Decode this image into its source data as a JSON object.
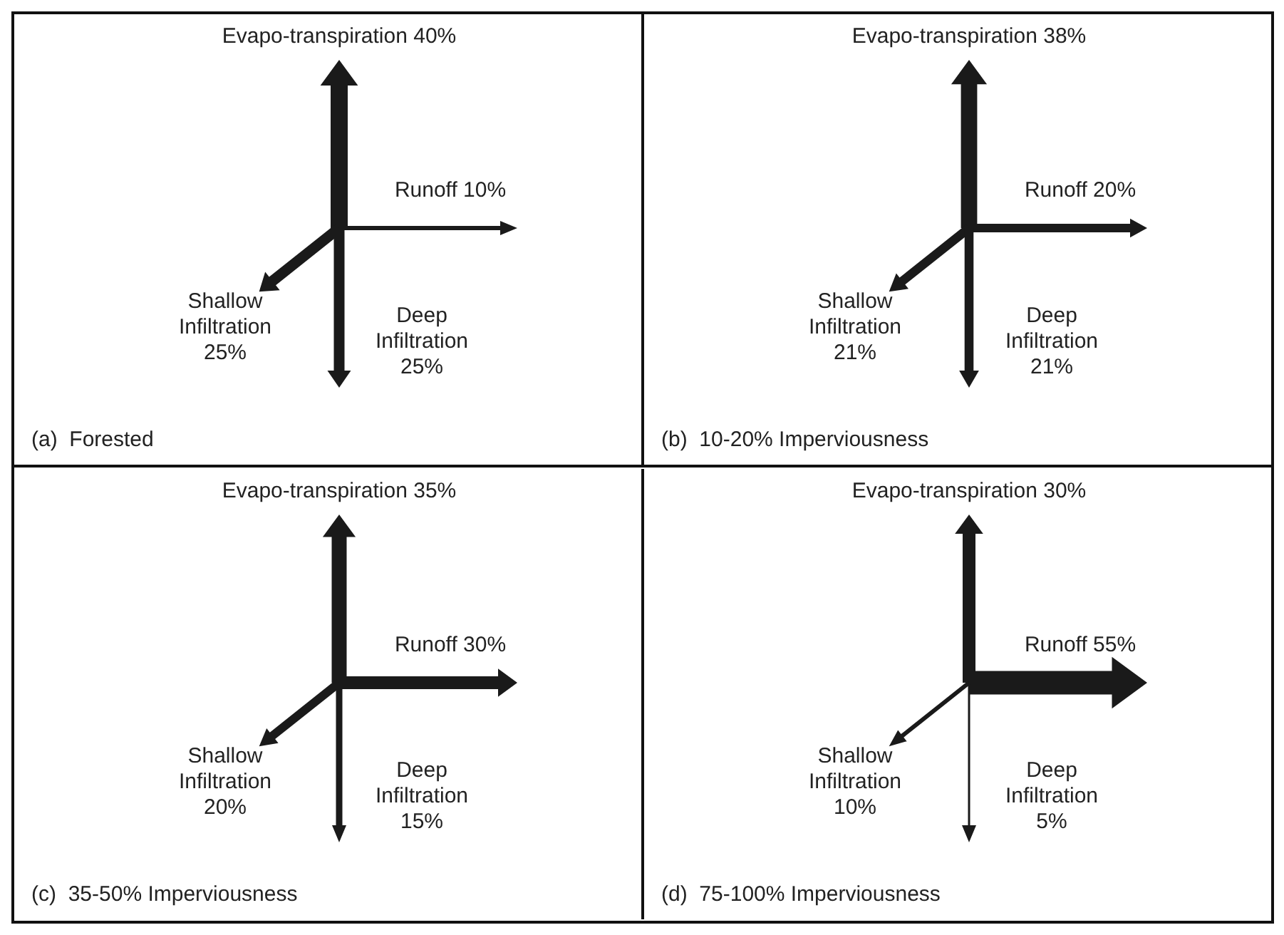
{
  "chart_data": [
    {
      "type": "other",
      "title": "(a)  Forested",
      "categories": [
        "Evapo-transpiration",
        "Runoff",
        "Shallow Infiltration",
        "Deep Infiltration"
      ],
      "values": [
        40,
        10,
        25,
        25
      ],
      "value_labels": [
        "40%",
        "10%",
        "25%",
        "25%"
      ]
    },
    {
      "type": "other",
      "title": "(b)  10-20% Imperviousness",
      "categories": [
        "Evapo-transpiration",
        "Runoff",
        "Shallow Infiltration",
        "Deep Infiltration"
      ],
      "values": [
        38,
        20,
        21,
        21
      ],
      "value_labels": [
        "38%",
        "20%",
        "21%",
        "21%"
      ]
    },
    {
      "type": "other",
      "title": "(c)  35-50% Imperviousness",
      "categories": [
        "Evapo-transpiration",
        "Runoff",
        "Shallow Infiltration",
        "Deep Infiltration"
      ],
      "values": [
        35,
        30,
        20,
        15
      ],
      "value_labels": [
        "35%",
        "30%",
        "20%",
        "15%"
      ]
    },
    {
      "type": "other",
      "title": "(d)  75-100% Imperviousness",
      "categories": [
        "Evapo-transpiration",
        "Runoff",
        "Shallow Infiltration",
        "Deep Infiltration"
      ],
      "values": [
        30,
        55,
        10,
        5
      ],
      "value_labels": [
        "30%",
        "55%",
        "10%",
        "5%"
      ]
    }
  ]
}
